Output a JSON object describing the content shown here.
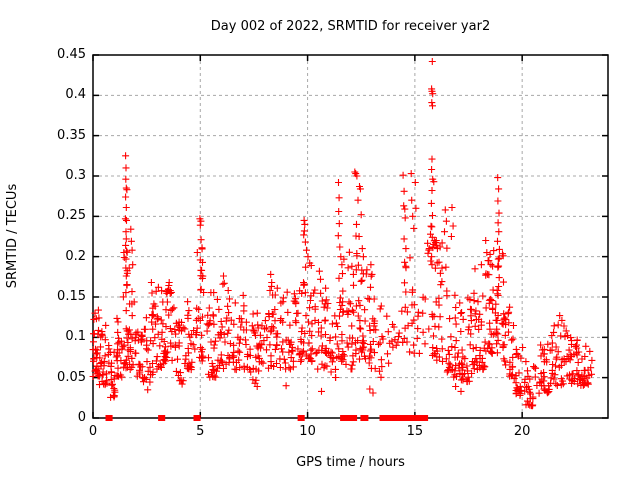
{
  "chart_data": {
    "type": "scatter",
    "title": "Day 002 of 2022, SRMTID for receiver yar2",
    "xlabel": "GPS time / hours",
    "ylabel": "SRMTID / TECUs",
    "xlim": [
      0,
      24
    ],
    "ylim": [
      0,
      0.45
    ],
    "xticks": [
      0,
      5,
      10,
      15,
      20
    ],
    "yticks": [
      0,
      0.05,
      0.1,
      0.15,
      0.2,
      0.25,
      0.3,
      0.35,
      0.4,
      0.45
    ],
    "grid": true,
    "legend_position": "none",
    "marker": {
      "shape": "plus",
      "size": 7,
      "color": "#ff0000"
    },
    "colors": {
      "marker": "#ff0000",
      "grid": "#a8a8a8",
      "border": "#000000",
      "background": "#ffffff"
    },
    "series_name": "SRMTID for receiver yar2",
    "points": [
      [
        1.52,
        0.325
      ],
      [
        1.54,
        0.31
      ],
      [
        1.53,
        0.296
      ],
      [
        1.55,
        0.285
      ],
      [
        1.58,
        0.283
      ],
      [
        1.52,
        0.274
      ],
      [
        1.55,
        0.261
      ],
      [
        1.51,
        0.247
      ],
      [
        1.56,
        0.245
      ],
      [
        1.54,
        0.231
      ],
      [
        1.55,
        0.222
      ],
      [
        1.52,
        0.214
      ],
      [
        1.56,
        0.207
      ],
      [
        1.54,
        0.197
      ],
      [
        1.53,
        0.186
      ],
      [
        1.55,
        0.176
      ],
      [
        1.57,
        0.165
      ],
      [
        1.76,
        0.234
      ],
      [
        1.79,
        0.219
      ],
      [
        1.82,
        0.208
      ],
      [
        1.85,
        0.19
      ],
      [
        2.72,
        0.168
      ],
      [
        2.75,
        0.155
      ],
      [
        3.05,
        0.162
      ],
      [
        3.55,
        0.168
      ],
      [
        3.6,
        0.158
      ],
      [
        4.98,
        0.247
      ],
      [
        5.03,
        0.244
      ],
      [
        5.0,
        0.239
      ],
      [
        5.04,
        0.221
      ],
      [
        5.08,
        0.211
      ],
      [
        5.0,
        0.196
      ],
      [
        5.06,
        0.183
      ],
      [
        5.1,
        0.173
      ],
      [
        6.08,
        0.176
      ],
      [
        6.12,
        0.167
      ],
      [
        6.3,
        0.158
      ],
      [
        7.0,
        0.152
      ],
      [
        8.28,
        0.178
      ],
      [
        8.33,
        0.168
      ],
      [
        8.25,
        0.158
      ],
      [
        9.05,
        0.156
      ],
      [
        9.84,
        0.245
      ],
      [
        9.87,
        0.24
      ],
      [
        9.85,
        0.232
      ],
      [
        9.82,
        0.227
      ],
      [
        9.9,
        0.218
      ],
      [
        9.95,
        0.208
      ],
      [
        10.02,
        0.2
      ],
      [
        10.1,
        0.192
      ],
      [
        10.55,
        0.182
      ],
      [
        10.6,
        0.172
      ],
      [
        11.44,
        0.292
      ],
      [
        11.47,
        0.273
      ],
      [
        11.45,
        0.256
      ],
      [
        11.48,
        0.241
      ],
      [
        11.43,
        0.226
      ],
      [
        11.5,
        0.212
      ],
      [
        11.55,
        0.2
      ],
      [
        11.6,
        0.19
      ],
      [
        12.2,
        0.305
      ],
      [
        12.24,
        0.303
      ],
      [
        12.3,
        0.3
      ],
      [
        12.42,
        0.287
      ],
      [
        12.46,
        0.284
      ],
      [
        12.35,
        0.27
      ],
      [
        12.5,
        0.252
      ],
      [
        12.28,
        0.24
      ],
      [
        12.4,
        0.225
      ],
      [
        12.55,
        0.21
      ],
      [
        12.6,
        0.2
      ],
      [
        12.95,
        0.19
      ],
      [
        13.0,
        0.178
      ],
      [
        14.45,
        0.301
      ],
      [
        14.5,
        0.281
      ],
      [
        14.48,
        0.263
      ],
      [
        14.53,
        0.259
      ],
      [
        14.55,
        0.248
      ],
      [
        14.5,
        0.222
      ],
      [
        14.58,
        0.21
      ],
      [
        14.52,
        0.193
      ],
      [
        14.83,
        0.303
      ],
      [
        14.85,
        0.27
      ],
      [
        14.9,
        0.25
      ],
      [
        14.95,
        0.235
      ],
      [
        15.02,
        0.292
      ],
      [
        15.05,
        0.26
      ],
      [
        15.81,
        0.442
      ],
      [
        15.78,
        0.408
      ],
      [
        15.8,
        0.405
      ],
      [
        15.83,
        0.402
      ],
      [
        15.79,
        0.391
      ],
      [
        15.82,
        0.387
      ],
      [
        15.8,
        0.321
      ],
      [
        15.78,
        0.308
      ],
      [
        15.83,
        0.296
      ],
      [
        15.8,
        0.282
      ],
      [
        15.77,
        0.266
      ],
      [
        15.82,
        0.251
      ],
      [
        15.79,
        0.237
      ],
      [
        15.81,
        0.224
      ],
      [
        15.84,
        0.212
      ],
      [
        15.78,
        0.2
      ],
      [
        15.8,
        0.19
      ],
      [
        16.0,
        0.22
      ],
      [
        16.05,
        0.21
      ],
      [
        16.42,
        0.258
      ],
      [
        16.47,
        0.244
      ],
      [
        16.38,
        0.231
      ],
      [
        16.73,
        0.261
      ],
      [
        16.78,
        0.238
      ],
      [
        16.7,
        0.225
      ],
      [
        17.8,
        0.185
      ],
      [
        18.1,
        0.19
      ],
      [
        18.3,
        0.22
      ],
      [
        18.35,
        0.205
      ],
      [
        18.45,
        0.195
      ],
      [
        18.86,
        0.298
      ],
      [
        18.9,
        0.284
      ],
      [
        18.87,
        0.269
      ],
      [
        18.92,
        0.254
      ],
      [
        18.88,
        0.242
      ],
      [
        18.91,
        0.231
      ],
      [
        18.85,
        0.219
      ],
      [
        18.94,
        0.209
      ],
      [
        18.89,
        0.197
      ],
      [
        18.87,
        0.187
      ],
      [
        18.93,
        0.174
      ],
      [
        18.9,
        0.163
      ],
      [
        18.88,
        0.152
      ],
      [
        21.75,
        0.127
      ],
      [
        21.85,
        0.121
      ],
      [
        21.95,
        0.114
      ],
      [
        22.05,
        0.108
      ],
      [
        0.95,
        0.028
      ],
      [
        1.02,
        0.032
      ],
      [
        2.55,
        0.035
      ],
      [
        4.15,
        0.042
      ],
      [
        7.55,
        0.043
      ],
      [
        7.65,
        0.039
      ],
      [
        9.0,
        0.04
      ],
      [
        10.65,
        0.033
      ],
      [
        12.9,
        0.036
      ],
      [
        13.05,
        0.031
      ],
      [
        16.9,
        0.039
      ],
      [
        17.15,
        0.033
      ],
      [
        19.9,
        0.028
      ],
      [
        20.25,
        0.021
      ],
      [
        20.35,
        0.016
      ],
      [
        20.5,
        0.024
      ]
    ],
    "band_segments": [
      [
        0.0,
        0.3,
        0.05,
        0.135,
        30
      ],
      [
        0.3,
        0.7,
        0.04,
        0.115,
        26
      ],
      [
        0.7,
        1.1,
        0.025,
        0.09,
        22
      ],
      [
        1.1,
        1.4,
        0.05,
        0.125,
        20
      ],
      [
        1.4,
        1.7,
        0.06,
        0.21,
        26
      ],
      [
        1.7,
        2.0,
        0.06,
        0.17,
        20
      ],
      [
        2.0,
        2.4,
        0.045,
        0.115,
        22
      ],
      [
        2.4,
        2.8,
        0.04,
        0.15,
        22
      ],
      [
        2.8,
        3.3,
        0.06,
        0.16,
        28
      ],
      [
        3.3,
        3.8,
        0.07,
        0.165,
        30
      ],
      [
        3.8,
        4.3,
        0.045,
        0.125,
        24
      ],
      [
        4.3,
        4.8,
        0.06,
        0.145,
        26
      ],
      [
        4.8,
        5.2,
        0.07,
        0.21,
        28
      ],
      [
        5.2,
        5.8,
        0.05,
        0.16,
        30
      ],
      [
        5.8,
        6.4,
        0.06,
        0.17,
        30
      ],
      [
        6.4,
        7.2,
        0.06,
        0.15,
        36
      ],
      [
        7.2,
        7.9,
        0.045,
        0.13,
        32
      ],
      [
        7.9,
        8.6,
        0.06,
        0.17,
        34
      ],
      [
        8.6,
        9.4,
        0.06,
        0.16,
        34
      ],
      [
        9.4,
        9.9,
        0.07,
        0.2,
        28
      ],
      [
        9.9,
        10.4,
        0.07,
        0.19,
        28
      ],
      [
        10.4,
        11.0,
        0.06,
        0.17,
        30
      ],
      [
        11.0,
        11.35,
        0.05,
        0.13,
        16
      ],
      [
        11.35,
        11.75,
        0.07,
        0.23,
        26
      ],
      [
        11.75,
        12.15,
        0.06,
        0.21,
        24
      ],
      [
        12.15,
        12.6,
        0.07,
        0.24,
        26
      ],
      [
        12.6,
        13.1,
        0.06,
        0.19,
        26
      ],
      [
        13.1,
        13.45,
        0.05,
        0.15,
        14
      ],
      [
        13.45,
        14.0,
        0.06,
        0.135,
        11
      ],
      [
        14.0,
        14.45,
        0.08,
        0.14,
        8
      ],
      [
        14.45,
        14.75,
        0.09,
        0.2,
        10
      ],
      [
        14.75,
        15.1,
        0.08,
        0.2,
        10
      ],
      [
        15.1,
        15.55,
        0.08,
        0.15,
        10
      ],
      [
        15.55,
        16.0,
        0.07,
        0.3,
        24
      ],
      [
        16.0,
        16.5,
        0.07,
        0.22,
        26
      ],
      [
        16.5,
        17.1,
        0.05,
        0.16,
        32
      ],
      [
        17.1,
        17.7,
        0.045,
        0.15,
        34
      ],
      [
        17.7,
        18.3,
        0.06,
        0.175,
        36
      ],
      [
        18.3,
        18.75,
        0.08,
        0.21,
        32
      ],
      [
        18.75,
        19.15,
        0.07,
        0.22,
        28
      ],
      [
        19.15,
        19.6,
        0.05,
        0.14,
        24
      ],
      [
        19.6,
        20.1,
        0.03,
        0.09,
        22
      ],
      [
        20.1,
        20.7,
        0.015,
        0.07,
        24
      ],
      [
        20.7,
        21.3,
        0.03,
        0.095,
        28
      ],
      [
        21.3,
        22.0,
        0.04,
        0.12,
        32
      ],
      [
        22.0,
        22.6,
        0.04,
        0.105,
        32
      ],
      [
        22.6,
        23.25,
        0.04,
        0.09,
        30
      ]
    ],
    "zero_marks": [
      [
        0.7,
        0.8
      ],
      [
        3.15,
        3.25
      ],
      [
        4.8,
        4.9
      ],
      [
        9.65,
        9.75
      ],
      [
        11.63,
        12.19
      ],
      [
        12.58,
        12.72
      ],
      [
        13.47,
        13.58
      ],
      [
        13.67,
        14.37
      ],
      [
        14.42,
        14.83
      ],
      [
        14.88,
        15.5
      ]
    ]
  }
}
